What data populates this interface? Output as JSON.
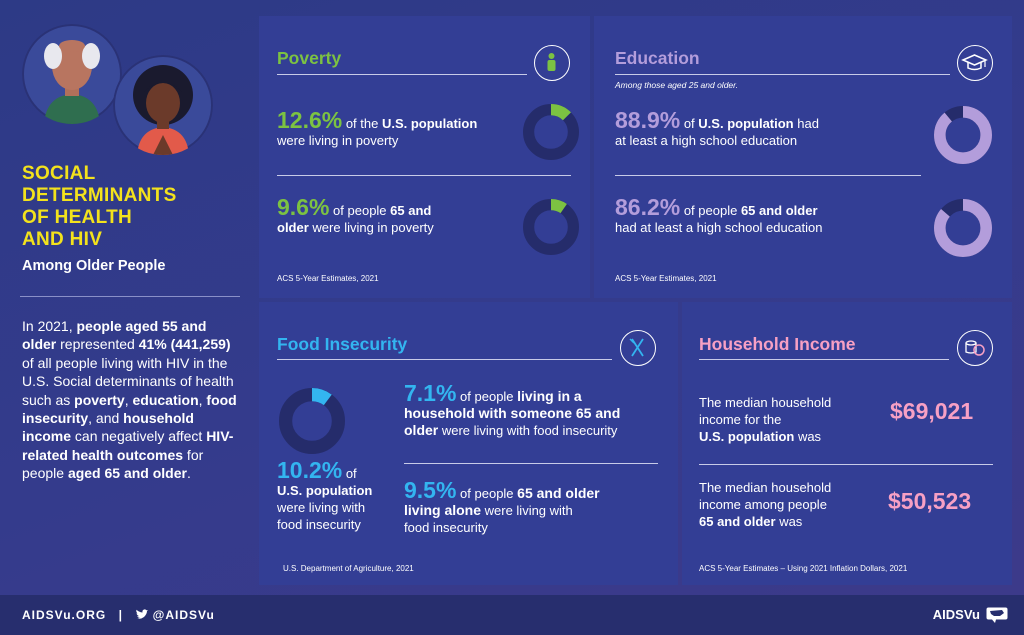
{
  "title_lines": [
    "SOCIAL",
    "DETERMINANTS",
    "OF HEALTH",
    "AND HIV"
  ],
  "subtitle": "Among Older People",
  "description": {
    "p1": "In 2021, ",
    "b1": "people aged 55 and older",
    "p2": " represented ",
    "b2": "41% (441,259)",
    "p3": " of all people living with HIV in the U.S. Social determinants of health such as ",
    "b3": "poverty",
    "p4": ", ",
    "b4": "education",
    "p5": ", ",
    "b5": "food insecurity",
    "p6": ", and ",
    "b6": "household income",
    "p7": " can negatively affect ",
    "b7": "HIV-related health outcomes",
    "p8": " for people ",
    "b8": "aged 65 and older",
    "p9": "."
  },
  "poverty": {
    "title": "Poverty",
    "stat1": {
      "value": "12.6%",
      "t1": " of the ",
      "b1": "U.S. population",
      "t2": "were living in poverty",
      "pct": 12.6
    },
    "stat2": {
      "value": "9.6%",
      "t1": " of people  ",
      "b1": "65 and",
      "b2": "older",
      "t2": " were living in poverty",
      "pct": 9.6
    },
    "source": "ACS 5-Year Estimates, 2021"
  },
  "education": {
    "title": "Education",
    "note": "Among those aged 25 and older.",
    "stat1": {
      "value": "88.9%",
      "t1": " of ",
      "b1": "U.S. population",
      "t2": " had",
      "t3": "at least a high school education",
      "pct": 88.9
    },
    "stat2": {
      "value": "86.2%",
      "t1": " of people ",
      "b1": "65 and older",
      "t3": "had at least a high school education",
      "pct": 86.2
    },
    "source": "ACS 5-Year Estimates, 2021"
  },
  "food": {
    "title": "Food Insecurity",
    "main": {
      "value": "10.2%",
      "t1": " of",
      "b1": "U.S. population",
      "t2": "were living with",
      "t3": "food insecurity",
      "pct": 10.2
    },
    "stat1": {
      "value": "7.1%",
      "t1": " of people ",
      "b1": "living in a",
      "b2": "household with someone 65 and",
      "b3": "older",
      "t2": " were living with food insecurity"
    },
    "stat2": {
      "value": "9.5%",
      "t1": " of people ",
      "b1": "65 and older",
      "b2": "living alone",
      "t2": " were living with",
      "t3": "food insecurity"
    },
    "source": "U.S. Department of Agriculture, 2021"
  },
  "income": {
    "title": "Household Income",
    "row1": {
      "l1": "The median household",
      "l2": "income for the",
      "b1": "U.S. population",
      "t1": " was",
      "value": "$69,021"
    },
    "row2": {
      "l1": "The median household",
      "l2": "income among people",
      "b1": "65 and older",
      "t1": " was",
      "value": "$50,523"
    },
    "source": "ACS 5-Year Estimates – Using 2021 Inflation Dollars, 2021"
  },
  "footer": {
    "site": "AIDSVu.ORG",
    "sep": "|",
    "handle": "@AIDSVu",
    "logo": "AIDSVu"
  },
  "colors": {
    "poverty": "#7cc242",
    "education": "#b39ddb",
    "food": "#33b5f0",
    "income": "#f7a0c4",
    "donut_track": "#252c6b"
  }
}
